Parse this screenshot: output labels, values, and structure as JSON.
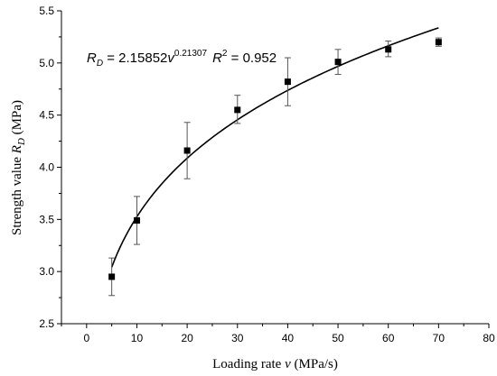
{
  "chart_data": {
    "type": "scatter",
    "xlabel": "Loading rate v (MPa/s)",
    "xlabel_parts": {
      "prefix": "Loading rate ",
      "var": "v",
      "suffix": " (MPa/s)"
    },
    "ylabel": "Strength value R_D (MPa)",
    "ylabel_parts": {
      "prefix": "Strength value ",
      "var": "R",
      "sub": "D",
      "suffix": " (MPa)"
    },
    "xlim": [
      -5,
      80
    ],
    "ylim": [
      2.5,
      5.5
    ],
    "x_ticks": [
      0,
      10,
      20,
      30,
      40,
      50,
      60,
      70,
      80
    ],
    "y_ticks": [
      2.5,
      3.0,
      3.5,
      4.0,
      4.5,
      5.0,
      5.5
    ],
    "x_tick_labels": [
      "0",
      "10",
      "20",
      "30",
      "40",
      "50",
      "60",
      "70",
      "80"
    ],
    "y_tick_labels": [
      "2.5",
      "3.0",
      "3.5",
      "4.0",
      "4.5",
      "5.0",
      "5.5"
    ],
    "series": [
      {
        "points": [
          {
            "x": 5,
            "y": 2.95,
            "err_low": 2.77,
            "err_high": 3.13
          },
          {
            "x": 10,
            "y": 3.49,
            "err_low": 3.26,
            "err_high": 3.72
          },
          {
            "x": 20,
            "y": 4.16,
            "err_low": 3.89,
            "err_high": 4.43
          },
          {
            "x": 30,
            "y": 4.55,
            "err_low": 4.42,
            "err_high": 4.69
          },
          {
            "x": 40,
            "y": 4.82,
            "err_low": 4.59,
            "err_high": 5.05
          },
          {
            "x": 50,
            "y": 5.01,
            "err_low": 4.89,
            "err_high": 5.13
          },
          {
            "x": 60,
            "y": 5.13,
            "err_low": 5.06,
            "err_high": 5.21
          },
          {
            "x": 70,
            "y": 5.2,
            "err_low": 5.16,
            "err_high": 5.24
          }
        ]
      }
    ],
    "fit": {
      "a": 2.15852,
      "b": 0.21307,
      "x_range": [
        5,
        70
      ]
    },
    "annotation": {
      "lhs_var": "R",
      "lhs_sub": "D",
      "rhs_coef": " = 2.15852",
      "rhs_var": "v",
      "exponent": "0.21307",
      "r2_label": "R",
      "r2_sup": "2",
      "r2_value": " = 0.952"
    },
    "grid": false,
    "legend": "none"
  }
}
